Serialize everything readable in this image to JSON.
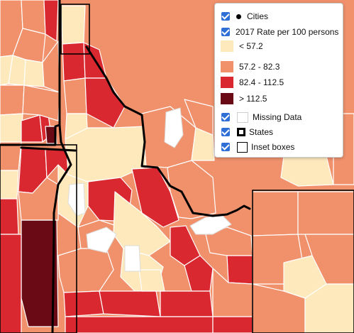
{
  "map": {
    "colors": {
      "tier1": "#fde9bc",
      "tier2": "#f0916c",
      "tier3": "#d9282f",
      "tier4": "#6a0a14",
      "missing": "#ffffff",
      "county_border": "#ffffff",
      "state_border": "#000000"
    }
  },
  "legend": {
    "layers": [
      {
        "label": "Cities",
        "symbol": "dot",
        "checked": true
      },
      {
        "label": "2017 Rate per 100 persons",
        "symbol": "none",
        "checked": true
      }
    ],
    "classes": [
      {
        "label": "< 57.2",
        "color": "#fde9bc"
      },
      {
        "label": "57.2 - 82.3",
        "color": "#f0916c"
      },
      {
        "label": "82.4 - 112.5",
        "color": "#d9282f"
      },
      {
        "label": "> 112.5",
        "color": "#6a0a14"
      }
    ],
    "extra": [
      {
        "label": "Missing Data",
        "symbol": "missing-box",
        "checked": true
      },
      {
        "label": "States",
        "symbol": "state-box",
        "checked": true
      },
      {
        "label": "Inset boxes",
        "symbol": "inset-box",
        "checked": true
      }
    ]
  }
}
